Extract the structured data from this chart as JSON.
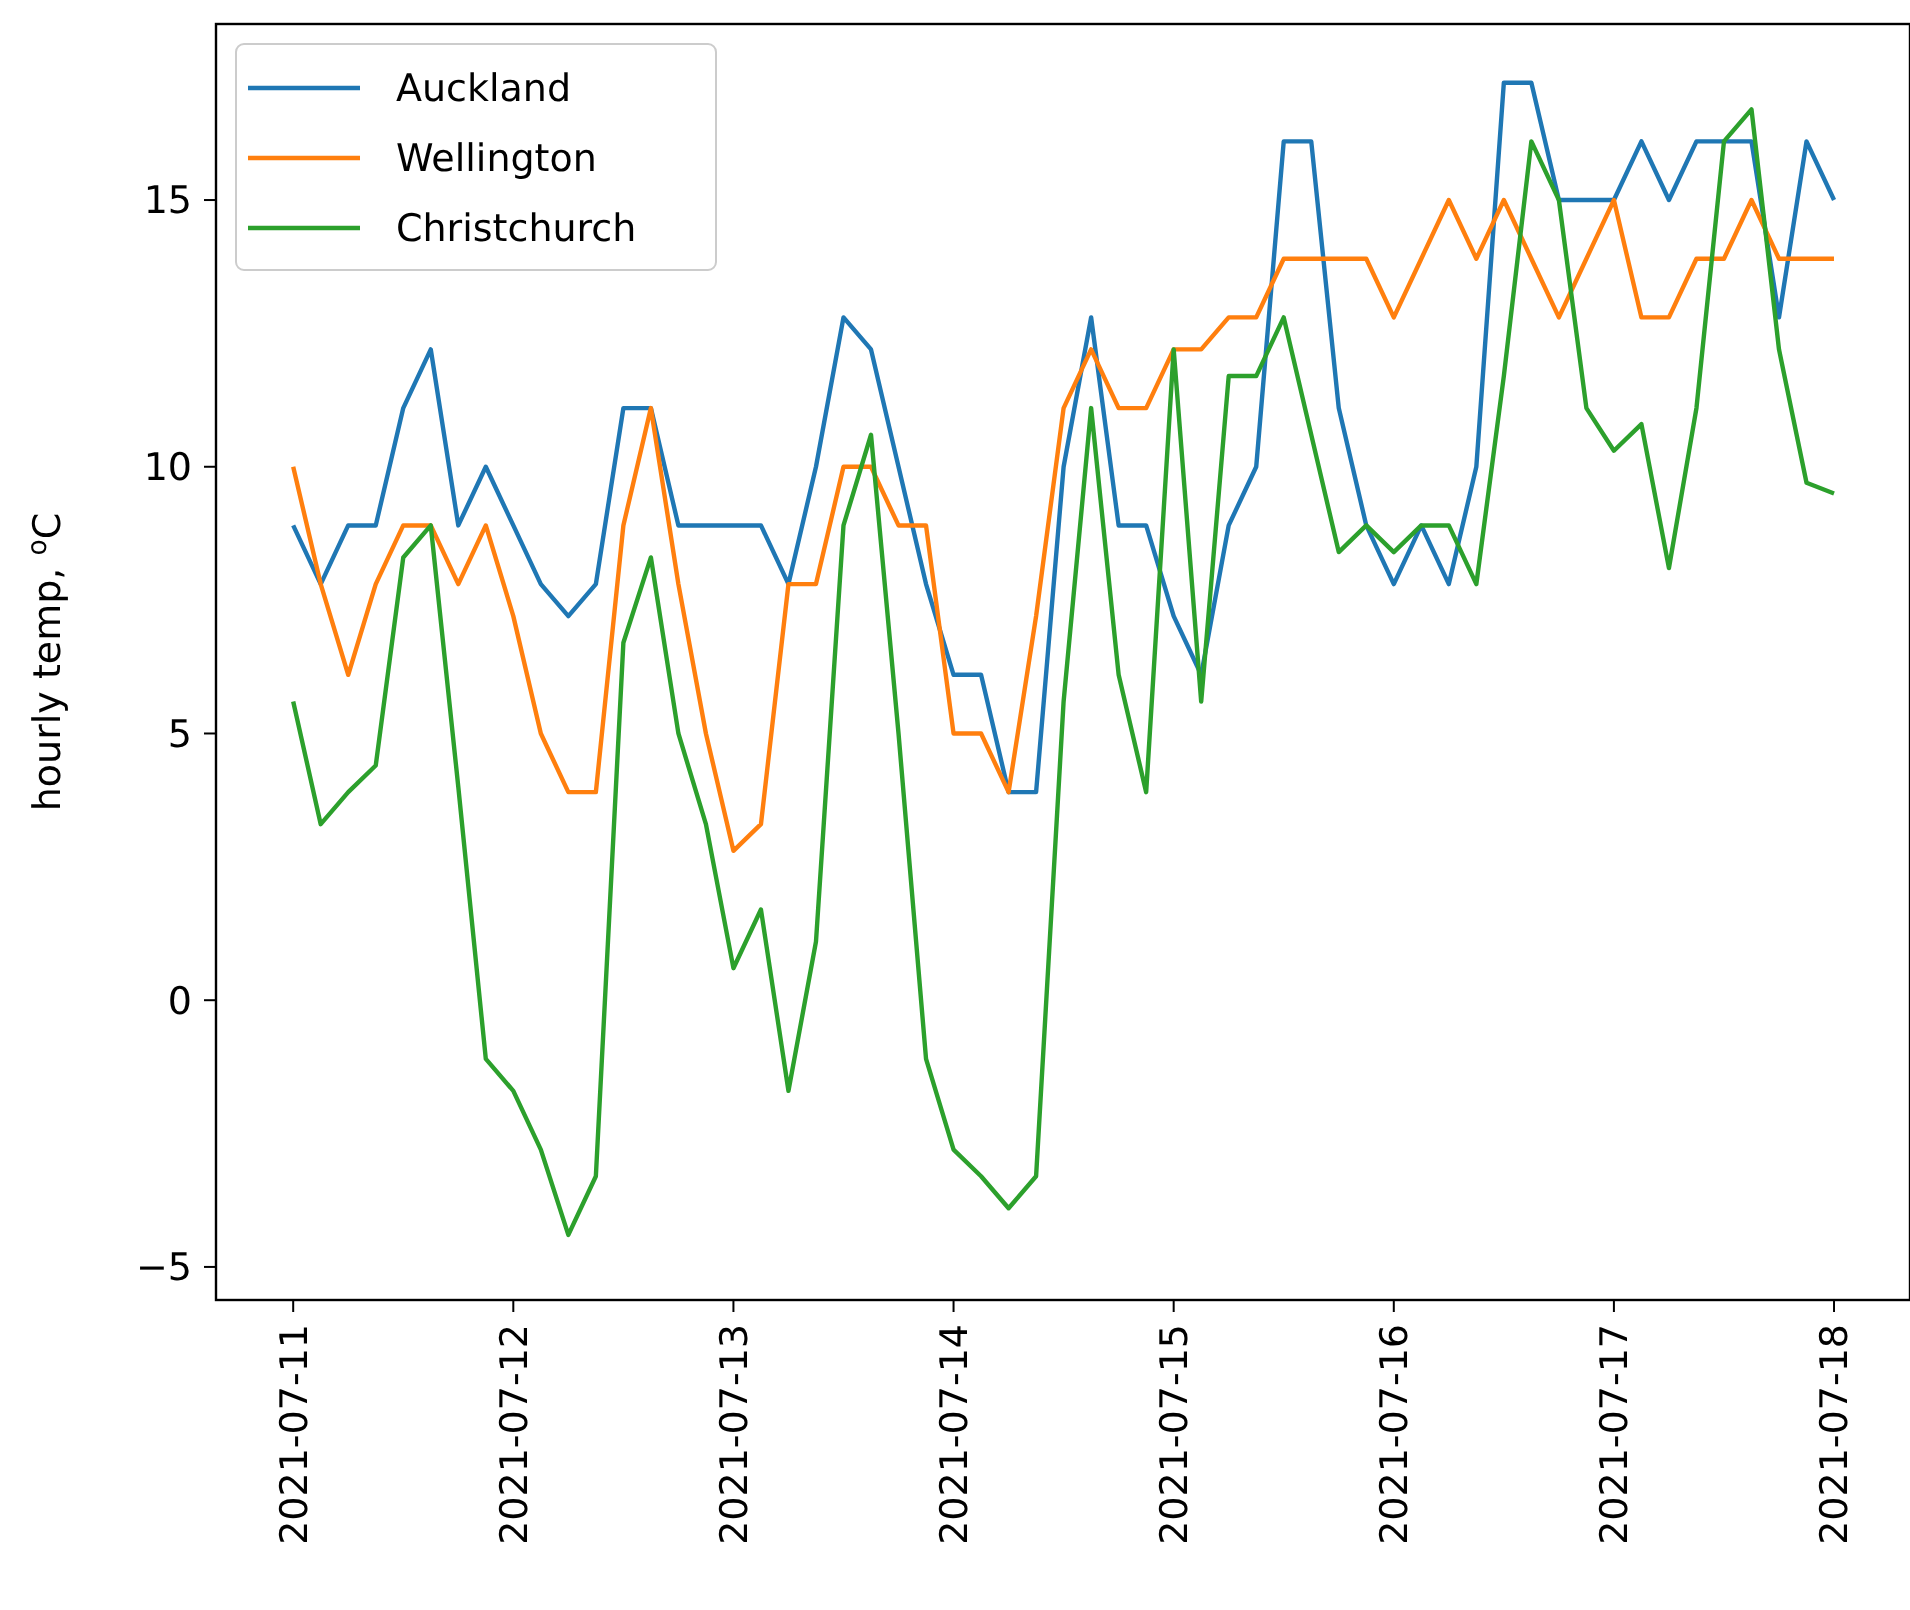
{
  "chart_data": {
    "type": "line",
    "ylabel": "hourly temp, $^{o}$C",
    "x": [
      "2021-07-11T00:00",
      "2021-07-11T03:00",
      "2021-07-11T06:00",
      "2021-07-11T09:00",
      "2021-07-11T12:00",
      "2021-07-11T15:00",
      "2021-07-11T18:00",
      "2021-07-11T21:00",
      "2021-07-12T00:00",
      "2021-07-12T03:00",
      "2021-07-12T06:00",
      "2021-07-12T09:00",
      "2021-07-12T12:00",
      "2021-07-12T15:00",
      "2021-07-12T18:00",
      "2021-07-12T21:00",
      "2021-07-13T00:00",
      "2021-07-13T03:00",
      "2021-07-13T06:00",
      "2021-07-13T09:00",
      "2021-07-13T12:00",
      "2021-07-13T15:00",
      "2021-07-13T18:00",
      "2021-07-13T21:00",
      "2021-07-14T00:00",
      "2021-07-14T03:00",
      "2021-07-14T06:00",
      "2021-07-14T09:00",
      "2021-07-14T12:00",
      "2021-07-14T15:00",
      "2021-07-14T18:00",
      "2021-07-14T21:00",
      "2021-07-15T00:00",
      "2021-07-15T03:00",
      "2021-07-15T06:00",
      "2021-07-15T09:00",
      "2021-07-15T12:00",
      "2021-07-15T15:00",
      "2021-07-15T18:00",
      "2021-07-15T21:00",
      "2021-07-16T00:00",
      "2021-07-16T03:00",
      "2021-07-16T06:00",
      "2021-07-16T09:00",
      "2021-07-16T12:00",
      "2021-07-16T15:00",
      "2021-07-16T18:00",
      "2021-07-16T21:00",
      "2021-07-17T00:00",
      "2021-07-17T03:00",
      "2021-07-17T06:00",
      "2021-07-17T09:00",
      "2021-07-17T12:00",
      "2021-07-17T15:00",
      "2021-07-17T18:00",
      "2021-07-17T21:00",
      "2021-07-18T00:00"
    ],
    "series": [
      {
        "name": "Auckland",
        "color": "#1f77b4",
        "values": [
          8.9,
          7.8,
          8.9,
          8.9,
          11.1,
          12.2,
          8.9,
          10,
          8.9,
          7.8,
          7.2,
          7.8,
          11.1,
          11.1,
          8.9,
          8.9,
          8.9,
          8.9,
          7.8,
          10,
          12.8,
          12.2,
          10,
          7.8,
          6.1,
          6.1,
          3.9,
          3.9,
          10,
          12.8,
          8.9,
          8.9,
          7.2,
          6.1,
          8.9,
          10,
          16.1,
          16.1,
          11.1,
          8.9,
          7.8,
          8.9,
          7.8,
          10,
          17.2,
          17.2,
          15,
          15,
          15,
          16.1,
          15,
          16.1,
          16.1,
          16.1,
          12.8,
          16.1,
          15
        ]
      },
      {
        "name": "Wellington",
        "color": "#ff7f0e",
        "values": [
          10,
          7.8,
          6.1,
          7.8,
          8.9,
          8.9,
          7.8,
          8.9,
          7.2,
          5,
          3.9,
          3.9,
          8.9,
          11.1,
          7.8,
          5,
          2.8,
          3.3,
          7.8,
          7.8,
          10,
          10,
          8.9,
          8.9,
          5,
          5,
          3.9,
          7.2,
          11.1,
          12.2,
          11.1,
          11.1,
          12.2,
          12.2,
          12.8,
          12.8,
          13.9,
          13.9,
          13.9,
          13.9,
          12.8,
          13.9,
          15,
          13.9,
          15,
          13.9,
          12.8,
          13.9,
          15,
          12.8,
          12.8,
          13.9,
          13.9,
          15,
          13.9,
          13.9,
          13.9
        ]
      },
      {
        "name": "Christchurch",
        "color": "#2ca02c",
        "values": [
          5.6,
          3.3,
          3.9,
          4.4,
          8.3,
          8.9,
          4,
          -1.1,
          -1.7,
          -2.8,
          -4.4,
          -3.3,
          6.7,
          8.3,
          5,
          3.3,
          0.6,
          1.7,
          -1.7,
          1.1,
          8.9,
          10.6,
          5,
          -1.1,
          -2.8,
          -3.3,
          -3.9,
          -3.3,
          5.6,
          11.1,
          6.1,
          3.9,
          12.2,
          5.6,
          11.7,
          11.7,
          12.8,
          10.6,
          8.4,
          8.9,
          8.4,
          8.9,
          8.9,
          7.8,
          11.7,
          16.1,
          15,
          11.1,
          10.3,
          10.8,
          8.1,
          11.1,
          16.1,
          16.7,
          12.2,
          9.7,
          9.5
        ]
      }
    ],
    "xlim": [
      "2021-07-10T15:35",
      "2021-07-18T08:17"
    ],
    "xticks": [
      "2021-07-11",
      "2021-07-12",
      "2021-07-13",
      "2021-07-14",
      "2021-07-15",
      "2021-07-16",
      "2021-07-17",
      "2021-07-18"
    ],
    "ylim": [
      -5.62,
      18.3
    ],
    "yticks": [
      {
        "value": -5,
        "label": "−5"
      },
      0,
      5,
      10,
      15
    ],
    "legend": "top left"
  }
}
